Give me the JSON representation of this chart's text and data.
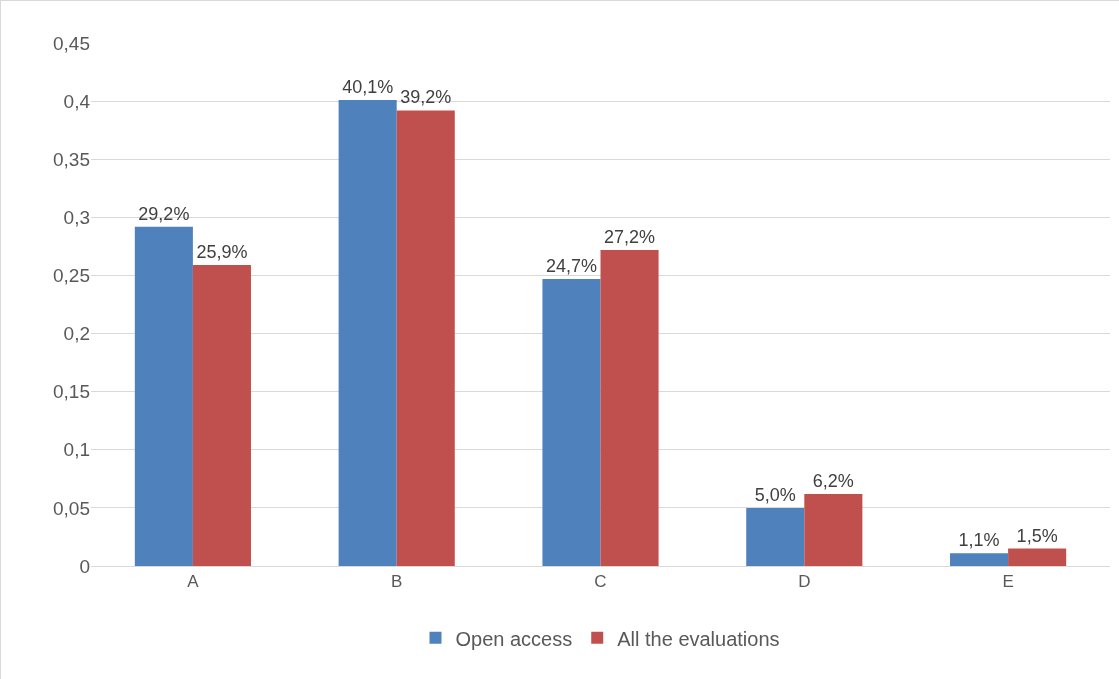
{
  "chart_data": {
    "type": "bar",
    "categories": [
      "A",
      "B",
      "C",
      "D",
      "E"
    ],
    "series": [
      {
        "name": "Open access",
        "color": "#4f81bd",
        "values": [
          0.292,
          0.401,
          0.247,
          0.05,
          0.011
        ],
        "value_labels": [
          "29,2%",
          "40,1%",
          "24,7%",
          "5,0%",
          "1,1%"
        ]
      },
      {
        "name": "All the evaluations",
        "color": "#c0504d",
        "values": [
          0.259,
          0.392,
          0.272,
          0.062,
          0.015
        ],
        "value_labels": [
          "25,9%",
          "39,2%",
          "27,2%",
          "6,2%",
          "1,5%"
        ]
      }
    ],
    "ylim": [
      0,
      0.45
    ],
    "yticks": [
      0,
      {
        "value": 0.05,
        "label": "0,05"
      },
      {
        "value": 0.1,
        "label": "0,1"
      },
      {
        "value": 0.15,
        "label": "0,15"
      },
      {
        "value": 0.2,
        "label": "0,2"
      },
      {
        "value": 0.25,
        "label": "0,25"
      },
      {
        "value": 0.3,
        "label": "0,3"
      },
      {
        "value": 0.35,
        "label": "0,35"
      },
      {
        "value": 0.4,
        "label": "0,4"
      },
      {
        "value": 0.45,
        "label": "0,45"
      }
    ],
    "grid": "y",
    "legend": "bottom"
  }
}
